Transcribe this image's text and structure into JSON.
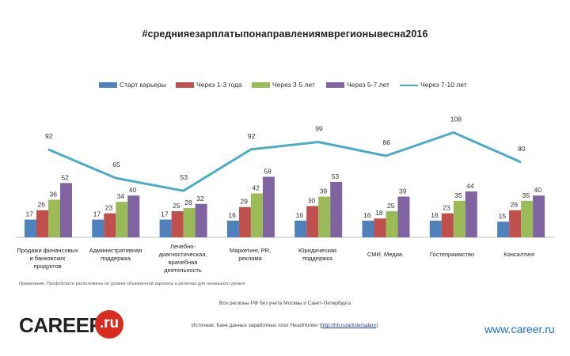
{
  "header": {
    "hashtag": "#среднияезарплатыпонаправлениямврегионывесна2016"
  },
  "colors": {
    "start": "#4f81bd",
    "y1_3": "#c0504d",
    "y3_5": "#9bbb59",
    "y5_7": "#8064a2",
    "y7_10": "#4bacc6"
  },
  "chart_data": {
    "type": "bar",
    "categories": [
      "Продажи финансовых и банковских продуктов",
      "Административная поддержка",
      "Лечебно-диагностическая, врачебная деятельность",
      "Маркетинг, PR, реклама",
      "Юридическая поддержка",
      "СМИ, Медиа",
      "Гостеприимство",
      "Консалтинг"
    ],
    "series": [
      {
        "name": "Старт карьеры",
        "type": "bar",
        "values": [
          17,
          17,
          17,
          16,
          16,
          16,
          16,
          15
        ]
      },
      {
        "name": "Через 1-3 года",
        "type": "bar",
        "values": [
          26,
          23,
          25,
          29,
          30,
          18,
          23,
          26
        ]
      },
      {
        "name": "Через 3-5 лет",
        "type": "bar",
        "values": [
          36,
          34,
          28,
          42,
          39,
          25,
          35,
          35
        ]
      },
      {
        "name": "Через 5-7 лет",
        "type": "bar",
        "values": [
          52,
          40,
          32,
          58,
          53,
          39,
          44,
          40
        ]
      },
      {
        "name": "Через 7-10 лет",
        "type": "line",
        "values": [
          92,
          65,
          53,
          92,
          99,
          86,
          108,
          80
        ]
      }
    ],
    "legend_position": "top",
    "grid": false
  },
  "labels": {
    "cat0": [
      "Продажи финансовых",
      "и банковских",
      "продуктов"
    ],
    "cat1": [
      "Административная",
      "поддержка"
    ],
    "cat2": [
      "Лечебно-",
      "диагностическая,",
      "врачебная",
      "деятельность"
    ],
    "cat3": [
      "Маркетинг, PR,",
      "реклама"
    ],
    "cat4": [
      "Юридическая",
      "поддержка"
    ],
    "cat5": [
      "СМИ, Медиа"
    ],
    "cat6": [
      "Гостеприимство"
    ],
    "cat7": [
      "Консалтинг"
    ]
  },
  "footer": {
    "note": "Примечание: Профобласти расположены по уровню объявленной зарплаты в регионах для начального уровня",
    "regions": "Все регионы РФ без учета Москвы и Санкт-Петербурга",
    "source_prefix": "Источник: Банк данных заработных плат HeadHunter (",
    "source_link": "http://hh.ru/article/salary",
    "source_suffix": ")",
    "logo_text": "CAREER",
    "logo_circle": ".ru",
    "site": "www.career.ru"
  }
}
